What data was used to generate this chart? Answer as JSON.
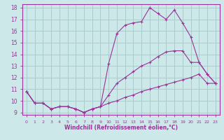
{
  "xlabel": "Windchill (Refroidissement éolien,°C)",
  "bg_color": "#cce8e8",
  "grid_color": "#aacccc",
  "line_color": "#993399",
  "xlim": [
    -0.5,
    23.5
  ],
  "ylim": [
    8.8,
    18.3
  ],
  "xticks": [
    0,
    1,
    2,
    3,
    4,
    5,
    6,
    7,
    8,
    9,
    10,
    11,
    12,
    13,
    14,
    15,
    16,
    17,
    18,
    19,
    20,
    21,
    22,
    23
  ],
  "yticks": [
    9,
    10,
    11,
    12,
    13,
    14,
    15,
    16,
    17,
    18
  ],
  "series1_x": [
    0,
    1,
    2,
    3,
    4,
    5,
    6,
    7,
    8,
    9,
    10,
    11,
    12,
    13,
    14,
    15,
    16,
    17,
    18,
    19,
    20,
    21,
    22,
    23
  ],
  "series1_y": [
    10.8,
    9.8,
    9.8,
    9.3,
    9.5,
    9.5,
    9.3,
    9.0,
    9.3,
    9.5,
    9.8,
    10.0,
    10.3,
    10.5,
    10.8,
    11.0,
    11.2,
    11.4,
    11.6,
    11.8,
    12.0,
    12.3,
    11.5,
    11.5
  ],
  "series2_x": [
    0,
    1,
    2,
    3,
    4,
    5,
    6,
    7,
    8,
    9,
    10,
    11,
    12,
    13,
    14,
    15,
    16,
    17,
    18,
    19,
    20,
    21,
    22,
    23
  ],
  "series2_y": [
    10.8,
    9.8,
    9.8,
    9.3,
    9.5,
    9.5,
    9.3,
    9.0,
    9.3,
    9.5,
    10.5,
    11.5,
    12.0,
    12.5,
    13.0,
    13.3,
    13.8,
    14.2,
    14.3,
    14.3,
    13.3,
    13.3,
    12.3,
    11.5
  ],
  "series3_x": [
    0,
    1,
    2,
    3,
    4,
    5,
    6,
    7,
    8,
    9,
    10,
    11,
    12,
    13,
    14,
    15,
    16,
    17,
    18,
    19,
    20,
    21,
    22,
    23
  ],
  "series3_y": [
    10.8,
    9.8,
    9.8,
    9.3,
    9.5,
    9.5,
    9.3,
    9.0,
    9.3,
    9.5,
    13.2,
    15.8,
    16.5,
    16.7,
    16.8,
    18.0,
    17.5,
    17.0,
    17.8,
    16.7,
    15.5,
    13.3,
    12.3,
    11.5
  ]
}
